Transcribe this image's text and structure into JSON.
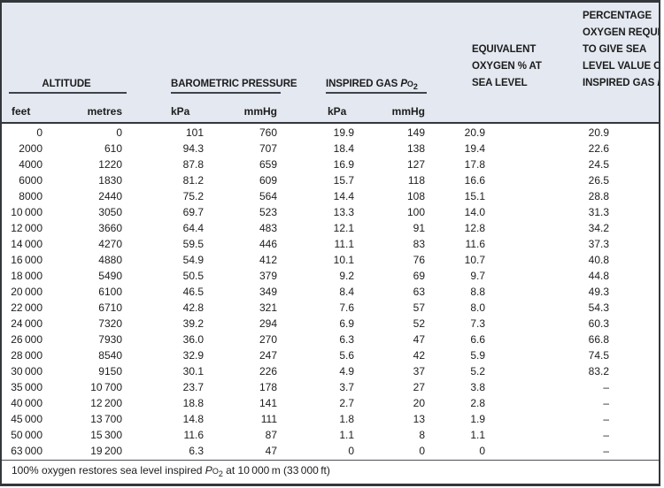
{
  "table": {
    "col_groups": {
      "altitude": "ALTITUDE",
      "barometric": "BAROMETRIC PRESSURE",
      "inspired_prefix": "INSPIRED GAS ",
      "equivalent_lines": [
        "EQUIVALENT",
        "OXYGEN % AT",
        "SEA LEVEL"
      ],
      "percentage_lines": [
        "PERCENTAGE",
        "OXYGEN REQUIRED",
        "TO GIVE SEA",
        "LEVEL VALUE OF"
      ],
      "percentage_last_prefix": "INSPIRED GAS "
    },
    "po2": {
      "p": "P",
      "o": "O",
      "sub": "2"
    },
    "units": [
      "feet",
      "metres",
      "kPa",
      "mmHg",
      "kPa",
      "mmHg"
    ],
    "rows": [
      [
        "0",
        "0",
        "101",
        "760",
        "19.9",
        "149",
        "20.9",
        "20.9"
      ],
      [
        "2000",
        "610",
        "94.3",
        "707",
        "18.4",
        "138",
        "19.4",
        "22.6"
      ],
      [
        "4000",
        "1220",
        "87.8",
        "659",
        "16.9",
        "127",
        "17.8",
        "24.5"
      ],
      [
        "6000",
        "1830",
        "81.2",
        "609",
        "15.7",
        "118",
        "16.6",
        "26.5"
      ],
      [
        "8000",
        "2440",
        "75.2",
        "564",
        "14.4",
        "108",
        "15.1",
        "28.8"
      ],
      [
        "10 000",
        "3050",
        "69.7",
        "523",
        "13.3",
        "100",
        "14.0",
        "31.3"
      ],
      [
        "12 000",
        "3660",
        "64.4",
        "483",
        "12.1",
        "91",
        "12.8",
        "34.2"
      ],
      [
        "14 000",
        "4270",
        "59.5",
        "446",
        "11.1",
        "83",
        "11.6",
        "37.3"
      ],
      [
        "16 000",
        "4880",
        "54.9",
        "412",
        "10.1",
        "76",
        "10.7",
        "40.8"
      ],
      [
        "18 000",
        "5490",
        "50.5",
        "379",
        "9.2",
        "69",
        "9.7",
        "44.8"
      ],
      [
        "20 000",
        "6100",
        "46.5",
        "349",
        "8.4",
        "63",
        "8.8",
        "49.3"
      ],
      [
        "22 000",
        "6710",
        "42.8",
        "321",
        "7.6",
        "57",
        "8.0",
        "54.3"
      ],
      [
        "24 000",
        "7320",
        "39.2",
        "294",
        "6.9",
        "52",
        "7.3",
        "60.3"
      ],
      [
        "26 000",
        "7930",
        "36.0",
        "270",
        "6.3",
        "47",
        "6.6",
        "66.8"
      ],
      [
        "28 000",
        "8540",
        "32.9",
        "247",
        "5.6",
        "42",
        "5.9",
        "74.5"
      ],
      [
        "30 000",
        "9150",
        "30.1",
        "226",
        "4.9",
        "37",
        "5.2",
        "83.2"
      ],
      [
        "35 000",
        "10 700",
        "23.7",
        "178",
        "3.7",
        "27",
        "3.8",
        "–"
      ],
      [
        "40 000",
        "12 200",
        "18.8",
        "141",
        "2.7",
        "20",
        "2.8",
        "–"
      ],
      [
        "45 000",
        "13 700",
        "14.8",
        "111",
        "1.8",
        "13",
        "1.9",
        "–"
      ],
      [
        "50 000",
        "15 300",
        "11.6",
        "87",
        "1.1",
        "8",
        "1.1",
        "–"
      ],
      [
        "63 000",
        "19 200",
        "6.3",
        "47",
        "0",
        "0",
        "0",
        "–"
      ]
    ]
  },
  "footer": {
    "prefix": "100% oxygen restores sea level inspired ",
    "suffix": " at 10 000 m (33 000 ft)"
  },
  "colors": {
    "header_background": "#e3e8f1",
    "frame_line": "#33373c",
    "text": "#1c1c1c",
    "body_background": "#ffffff"
  }
}
